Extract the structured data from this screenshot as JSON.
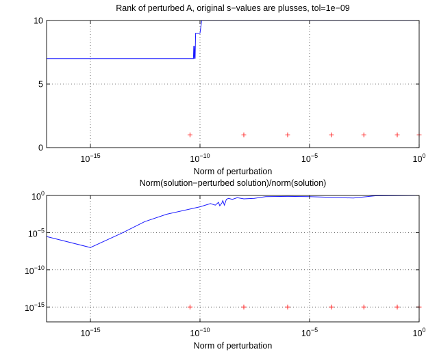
{
  "chart_data": [
    {
      "type": "line",
      "title": "Rank of perturbed A, original s−values are plusses, tol=1e−09",
      "xlabel": "Norm of perturbation",
      "ylabel": "",
      "xscale": "log",
      "yscale": "linear",
      "xlim": [
        1e-17,
        1
      ],
      "ylim": [
        0,
        10
      ],
      "x_ticks": [
        {
          "value": 1e-15,
          "base": "10",
          "exp": "−15"
        },
        {
          "value": 1e-10,
          "base": "10",
          "exp": "−10"
        },
        {
          "value": 1e-05,
          "base": "10",
          "exp": "−5"
        },
        {
          "value": 1,
          "base": "10",
          "exp": "0"
        }
      ],
      "y_ticks": [
        {
          "value": 0,
          "label": "0"
        },
        {
          "value": 5,
          "label": "5"
        },
        {
          "value": 10,
          "label": "10"
        }
      ],
      "grid": true,
      "series": [
        {
          "color": "#1a1aff",
          "points": [
            [
              1e-17,
              7
            ],
            [
              1e-13,
              7
            ],
            [
              3e-11,
              7
            ],
            [
              5e-11,
              7
            ],
            [
              5.2e-11,
              8
            ],
            [
              5.5e-11,
              7
            ],
            [
              5.8e-11,
              8
            ],
            [
              6e-11,
              7
            ],
            [
              6.3e-11,
              9
            ],
            [
              1e-10,
              9
            ],
            [
              1.2e-10,
              10
            ],
            [
              1e-05,
              10
            ],
            [
              1,
              10
            ]
          ]
        },
        {
          "color": "#ff2020",
          "marker": "+",
          "points": [
            [
              3.5e-11,
              1
            ],
            [
              1e-08,
              1
            ],
            [
              1e-06,
              1
            ],
            [
              0.0001,
              1
            ],
            [
              0.003,
              1
            ],
            [
              0.1,
              1
            ],
            [
              1,
              1
            ]
          ]
        }
      ]
    },
    {
      "type": "line",
      "title": "Norm(solution−perturbed solution)/norm(solution)",
      "xlabel": "Norm of perturbation",
      "ylabel": "",
      "xscale": "log",
      "yscale": "log",
      "xlim": [
        1e-17,
        1
      ],
      "ylim": [
        1e-17,
        1
      ],
      "x_ticks": [
        {
          "value": 1e-15,
          "base": "10",
          "exp": "−15"
        },
        {
          "value": 1e-10,
          "base": "10",
          "exp": "−10"
        },
        {
          "value": 1e-05,
          "base": "10",
          "exp": "−5"
        },
        {
          "value": 1,
          "base": "10",
          "exp": "0"
        }
      ],
      "y_ticks": [
        {
          "value": 1e-15,
          "base": "10",
          "exp": "−15"
        },
        {
          "value": 1e-10,
          "base": "10",
          "exp": "−10"
        },
        {
          "value": 1e-05,
          "base": "10",
          "exp": "−5"
        },
        {
          "value": 1,
          "base": "10",
          "exp": "0"
        }
      ],
      "grid": true,
      "series": [
        {
          "color": "#1a1aff",
          "points": [
            [
              1e-17,
              3e-06
            ],
            [
              1e-15,
              1e-07
            ],
            [
              3e-14,
              1e-05
            ],
            [
              3e-13,
              0.0003
            ],
            [
              3e-12,
              0.003
            ],
            [
              1e-10,
              0.03
            ],
            [
              3e-10,
              0.08
            ],
            [
              5e-10,
              0.05
            ],
            [
              7e-10,
              0.12
            ],
            [
              8e-10,
              0.04
            ],
            [
              1e-09,
              0.1
            ],
            [
              1.1e-09,
              0.2
            ],
            [
              1.3e-09,
              0.05
            ],
            [
              1.6e-09,
              0.3
            ],
            [
              2e-09,
              0.4
            ],
            [
              3e-09,
              0.3
            ],
            [
              5e-09,
              0.5
            ],
            [
              1e-08,
              0.35
            ],
            [
              3e-08,
              0.4
            ],
            [
              1e-07,
              0.7
            ],
            [
              1e-06,
              0.75
            ],
            [
              1e-05,
              0.7
            ],
            [
              0.001,
              0.45
            ],
            [
              0.01,
              0.9
            ],
            [
              1,
              1
            ]
          ]
        },
        {
          "color": "#ff2020",
          "marker": "+",
          "points": [
            [
              3.5e-11,
              1e-15
            ],
            [
              1e-08,
              1e-15
            ],
            [
              1e-06,
              1e-15
            ],
            [
              0.0001,
              1e-15
            ],
            [
              0.003,
              1e-15
            ],
            [
              0.1,
              1e-15
            ],
            [
              1,
              1e-15
            ]
          ]
        }
      ]
    }
  ]
}
